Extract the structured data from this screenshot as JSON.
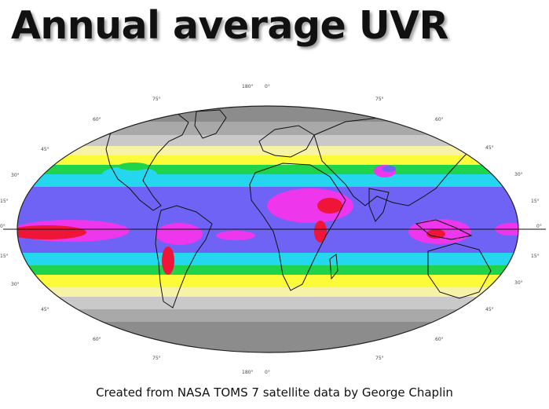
{
  "title": "Annual average UVR",
  "caption": "Created from NASA TOMS 7 satellite data by George Chaplin",
  "map": {
    "projection": "Mollweide",
    "top_longitude_labels": [
      "180°",
      "0°"
    ],
    "bottom_longitude_labels": [
      "180°",
      "0°"
    ],
    "latitude_labels_left": [
      "75°",
      "60°",
      "45°",
      "30°",
      "15°",
      "0°",
      "15°",
      "30°",
      "45°",
      "60°",
      "75°"
    ],
    "latitude_labels_right": [
      "75°",
      "60°",
      "45°",
      "30°",
      "15°",
      "0°",
      "15°",
      "30°",
      "45°",
      "60°",
      "75°"
    ],
    "colors": {
      "polar_dark": "#8c8c8c",
      "gray_mid": "#a9a9a9",
      "gray_light": "#c9c9c9",
      "pale_yellow": "#f6f3a6",
      "yellow": "#fbfb3a",
      "green": "#1fd34a",
      "cyan": "#25d7ee",
      "blue": "#6f63f5",
      "magenta": "#ee36ec",
      "red": "#ef1538",
      "coastline": "#111111"
    }
  }
}
